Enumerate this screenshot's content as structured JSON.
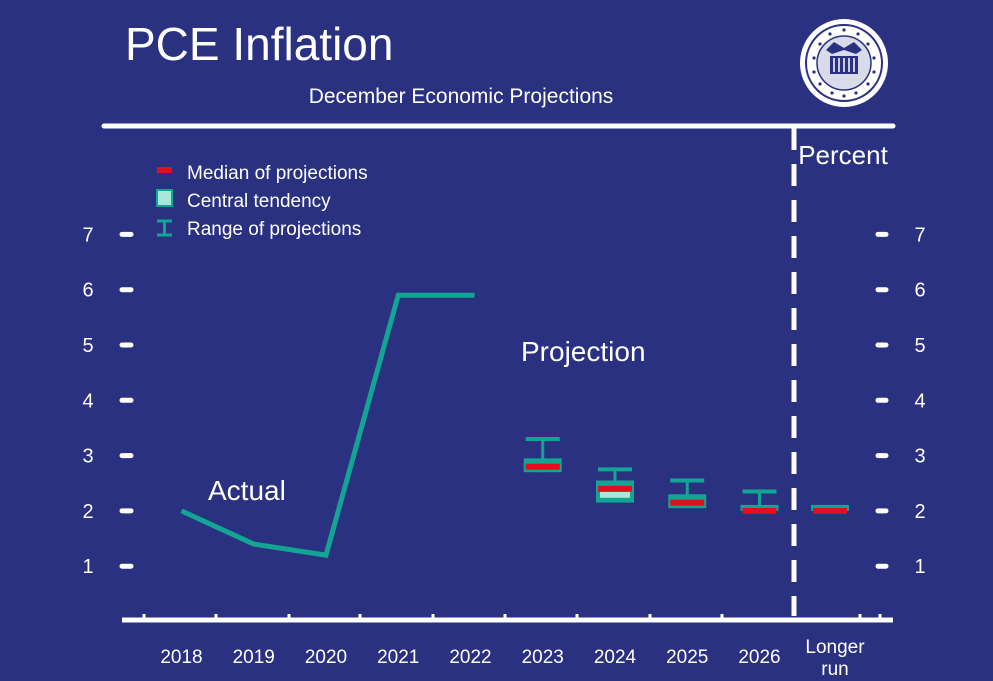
{
  "chart_data": {
    "type": "line",
    "title": "PCE Inflation",
    "subtitle": "December Economic Projections",
    "unit_label": "Percent",
    "ylim": [
      0,
      8
    ],
    "y_ticks": [
      "1",
      "2",
      "3",
      "4",
      "5",
      "6",
      "7"
    ],
    "categories": [
      "2018",
      "2019",
      "2020",
      "2021",
      "2022",
      "2023",
      "2024",
      "2025",
      "2026"
    ],
    "longer_run_label": [
      "Longer",
      "run"
    ],
    "annotations": {
      "actual": "Actual",
      "projection": "Projection"
    },
    "legend": {
      "placement": "top-left",
      "median": "Median of projections",
      "central": "Central tendency",
      "range": "Range of projections"
    },
    "actual": {
      "x": [
        "2018",
        "2019",
        "2020",
        "2021",
        "2022"
      ],
      "values": [
        2.0,
        1.4,
        1.2,
        5.9,
        5.9
      ]
    },
    "projections": [
      {
        "year": "2023",
        "median": 2.8,
        "central_low": 2.7,
        "central_high": 2.95,
        "range_low": 2.7,
        "range_high": 3.3
      },
      {
        "year": "2024",
        "median": 2.4,
        "central_low": 2.15,
        "central_high": 2.55,
        "range_low": 2.15,
        "range_high": 2.75
      },
      {
        "year": "2025",
        "median": 2.15,
        "central_low": 2.05,
        "central_high": 2.3,
        "range_low": 2.05,
        "range_high": 2.55
      },
      {
        "year": "2026",
        "median": 2.0,
        "central_low": 2.0,
        "central_high": 2.05,
        "range_low": 2.0,
        "range_high": 2.35
      },
      {
        "year": "Longer run",
        "median": 2.0,
        "central_low": 2.0,
        "central_high": 2.0,
        "range_low": 2.0,
        "range_high": 2.0
      }
    ],
    "colors": {
      "background": "#2a3180",
      "line": "#13a593",
      "central": "#13a593",
      "central_light": "#a8e8d8",
      "median": "#e0101c",
      "text": "#ffffff"
    }
  }
}
